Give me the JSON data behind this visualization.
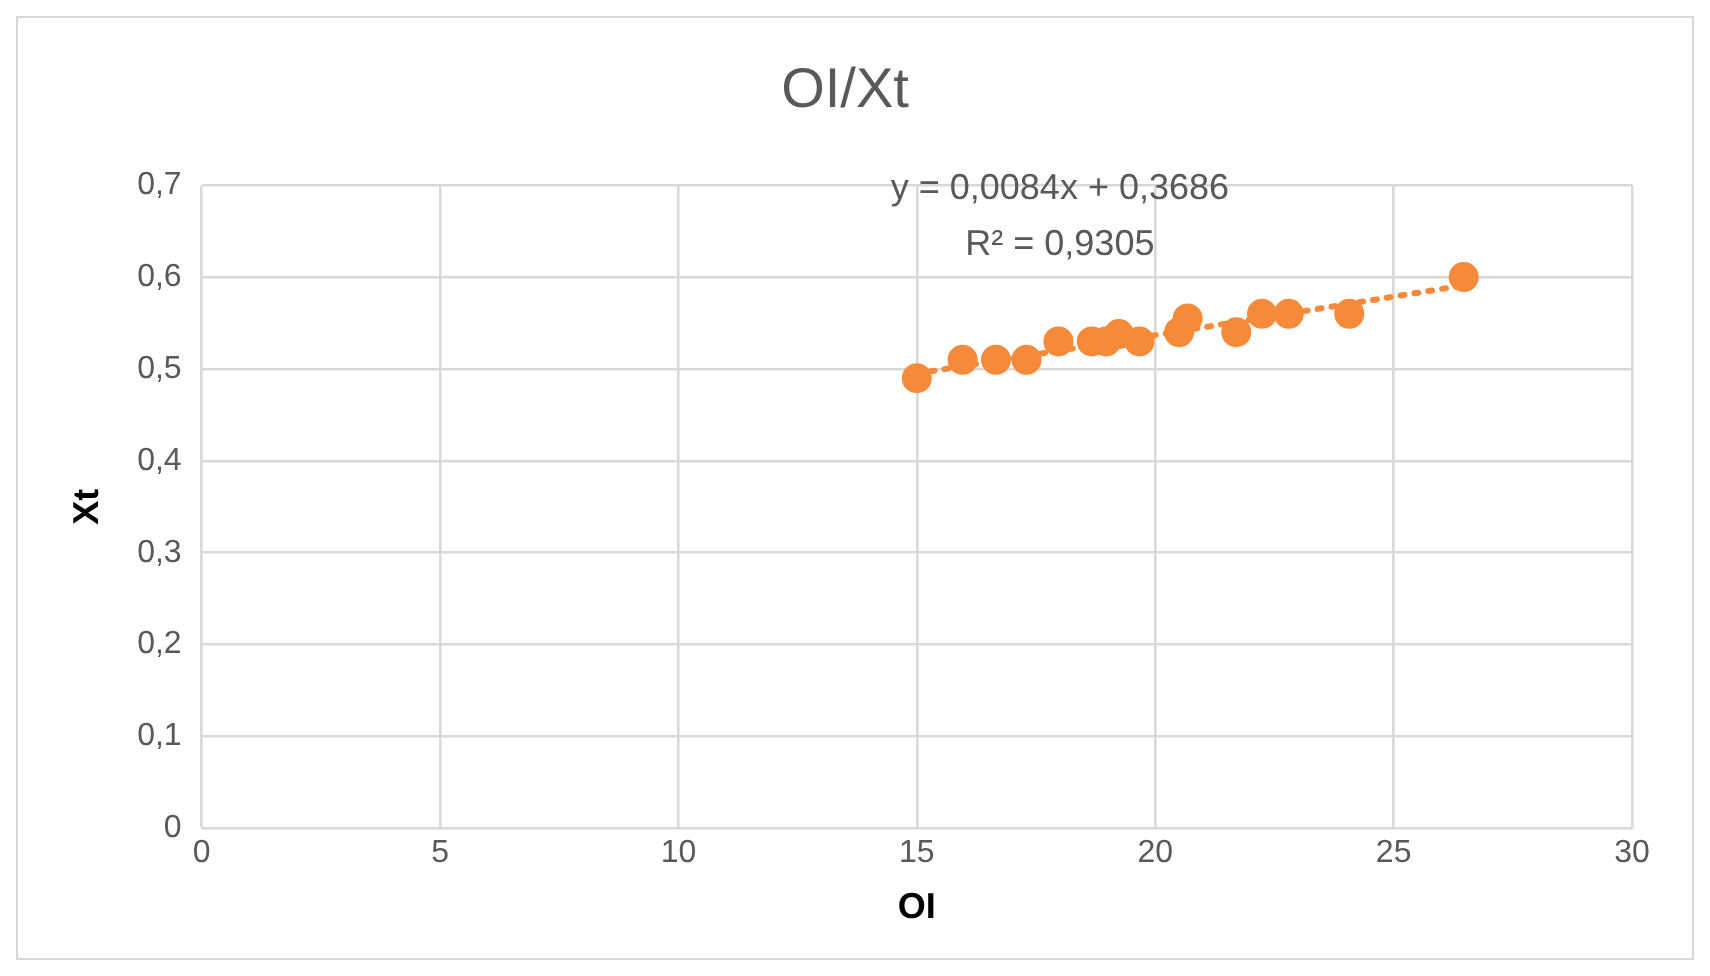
{
  "chart_data": {
    "type": "scatter",
    "title": "OI/Xt",
    "xlabel": "OI",
    "ylabel": "Xt",
    "series": [
      {
        "type": "scatter",
        "color": "#f58b3a",
        "marker": "circle",
        "x": [
          15.0,
          15.96,
          16.66,
          17.3,
          17.97,
          18.67,
          18.97,
          19.24,
          19.67,
          20.5,
          20.68,
          21.7,
          22.24,
          22.8,
          24.07,
          26.47
        ],
        "values": [
          0.49,
          0.51,
          0.51,
          0.51,
          0.53,
          0.53,
          0.53,
          0.538,
          0.53,
          0.54,
          0.555,
          0.54,
          0.56,
          0.56,
          0.56,
          0.6
        ]
      },
      {
        "type": "line",
        "color": "#f58b3a",
        "line_style": "dotted",
        "marker": "none",
        "x": [
          15.0,
          26.47
        ],
        "values": [
          0.495,
          0.591
        ]
      }
    ],
    "annotations": [
      "y = 0,0084x + 0,3686",
      "R² = 0,9305"
    ],
    "xlim": [
      0,
      30
    ],
    "xticks": [
      0,
      5,
      10,
      15,
      20,
      25,
      30
    ],
    "ylim": [
      0,
      0.7
    ],
    "yticks": [
      0,
      {
        "value": 0.1,
        "label": "0,1"
      },
      {
        "value": 0.2,
        "label": "0,2"
      },
      {
        "value": 0.3,
        "label": "0,3"
      },
      {
        "value": 0.4,
        "label": "0,4"
      },
      {
        "value": 0.5,
        "label": "0,5"
      },
      {
        "value": 0.6,
        "label": "0,6"
      },
      {
        "value": 0.7,
        "label": "0,7"
      }
    ],
    "grid": true,
    "legend": false
  }
}
